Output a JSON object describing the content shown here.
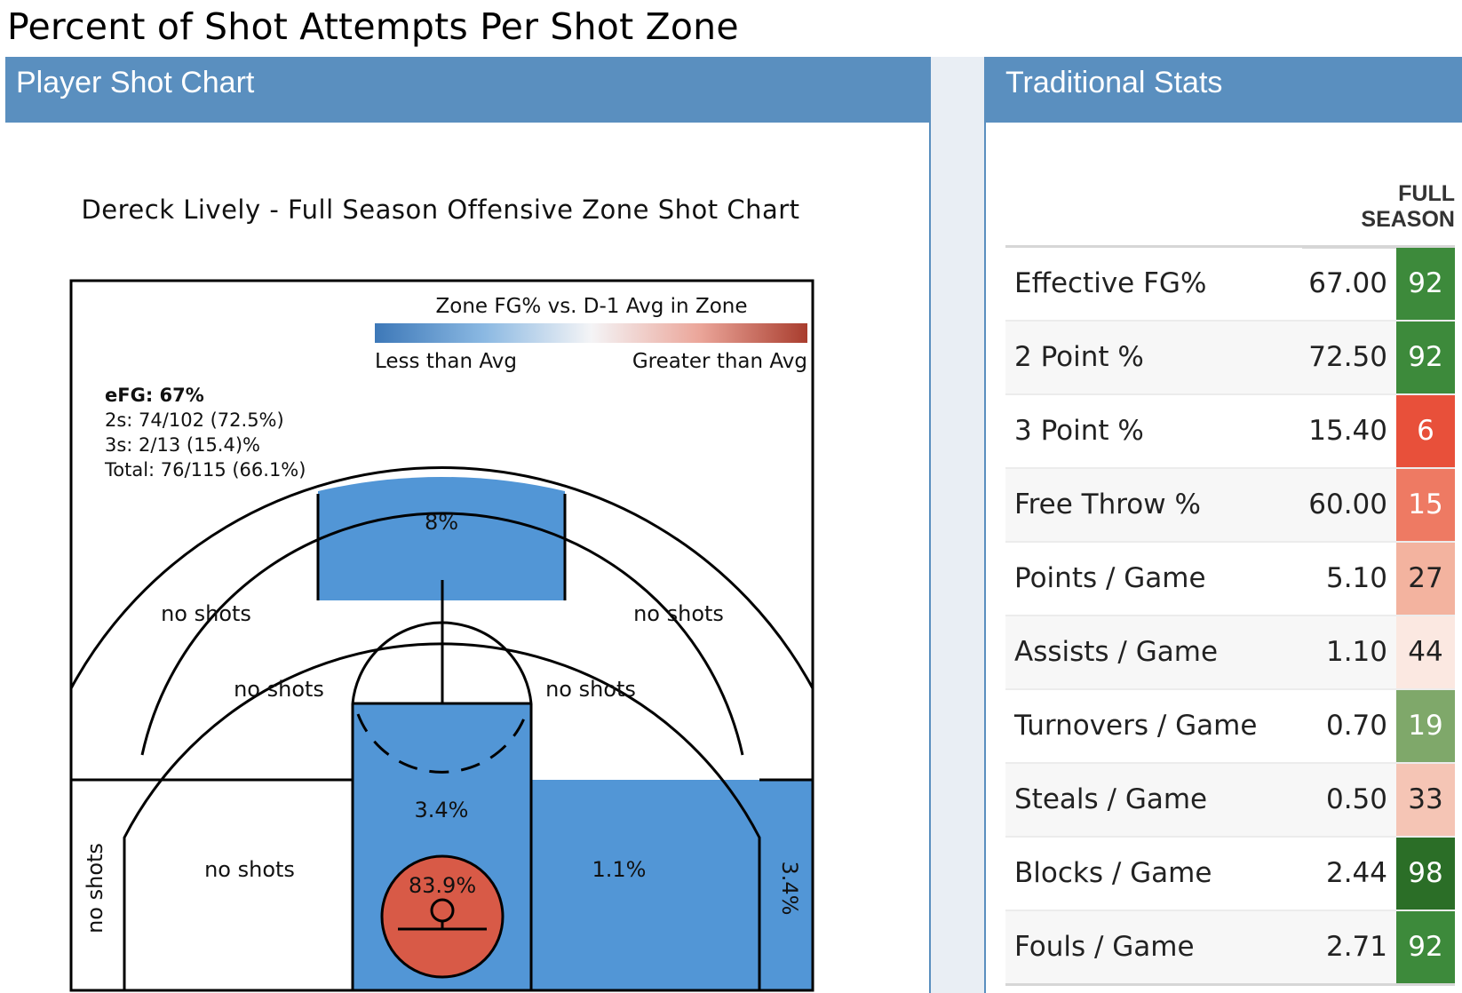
{
  "page": {
    "title": "Percent of Shot Attempts Per Shot Zone"
  },
  "left_panel": {
    "header": "Player Shot Chart",
    "chart_title": "Dereck Lively - Full Season Offensive Zone Shot Chart"
  },
  "right_panel": {
    "header": "Traditional Stats",
    "column_header": "FULL SEASON"
  },
  "colors": {
    "header_blue": "#5a8fbf",
    "zone_blue": "#5296d6",
    "zone_red": "#d85a47"
  },
  "chart_data": {
    "type": "heatmap",
    "title": "Dereck Lively - Full Season Offensive Zone Shot Chart",
    "colorbar": {
      "title": "Zone FG% vs. D-1 Avg in Zone",
      "low_label": "Less than Avg",
      "high_label": "Greater than Avg"
    },
    "summary": [
      {
        "label": "eFG: 67%"
      },
      {
        "label": "2s: 74/102 (72.5%)"
      },
      {
        "label": "3s: 2/13 (15.4)%"
      },
      {
        "label": "Total: 76/115 (66.1%)"
      }
    ],
    "zones": [
      {
        "zone": "top-of-key-3",
        "label": "8%",
        "relative": "below"
      },
      {
        "zone": "left-wing-3",
        "label": "no shots",
        "relative": "none"
      },
      {
        "zone": "right-wing-3",
        "label": "no shots",
        "relative": "none"
      },
      {
        "zone": "left-elbow-mid",
        "label": "no shots",
        "relative": "none"
      },
      {
        "zone": "right-elbow-mid",
        "label": "no shots",
        "relative": "none"
      },
      {
        "zone": "paint",
        "label": "3.4%",
        "relative": "below"
      },
      {
        "zone": "left-baseline-mid",
        "label": "no shots",
        "relative": "none"
      },
      {
        "zone": "right-baseline-mid",
        "label": "1.1%",
        "relative": "below"
      },
      {
        "zone": "left-corner-3",
        "label": "no shots",
        "relative": "none"
      },
      {
        "zone": "right-corner-3",
        "label": "3.4%",
        "relative": "below"
      },
      {
        "zone": "restricted-area",
        "label": "83.9%",
        "relative": "above"
      }
    ]
  },
  "stats": [
    {
      "label": "Effective FG%",
      "value": "67.00",
      "percentile": "92",
      "color": "#3d8a3b",
      "text_color": "#ffffff"
    },
    {
      "label": "2 Point %",
      "value": "72.50",
      "percentile": "92",
      "color": "#3d8a3b",
      "text_color": "#ffffff"
    },
    {
      "label": "3 Point %",
      "value": "15.40",
      "percentile": "6",
      "color": "#e8503a",
      "text_color": "#ffffff"
    },
    {
      "label": "Free Throw %",
      "value": "60.00",
      "percentile": "15",
      "color": "#ee7a63",
      "text_color": "#ffffff"
    },
    {
      "label": "Points / Game",
      "value": "5.10",
      "percentile": "27",
      "color": "#f3b39f",
      "text_color": "#222222"
    },
    {
      "label": "Assists / Game",
      "value": "1.10",
      "percentile": "44",
      "color": "#fbe8e1",
      "text_color": "#222222"
    },
    {
      "label": "Turnovers / Game",
      "value": "0.70",
      "percentile": "19",
      "color": "#7fa86a",
      "text_color": "#ffffff"
    },
    {
      "label": "Steals / Game",
      "value": "0.50",
      "percentile": "33",
      "color": "#f5c5b5",
      "text_color": "#222222"
    },
    {
      "label": "Blocks / Game",
      "value": "2.44",
      "percentile": "98",
      "color": "#2b6e27",
      "text_color": "#ffffff"
    },
    {
      "label": "Fouls / Game",
      "value": "2.71",
      "percentile": "92",
      "color": "#3d8a3b",
      "text_color": "#ffffff"
    }
  ]
}
